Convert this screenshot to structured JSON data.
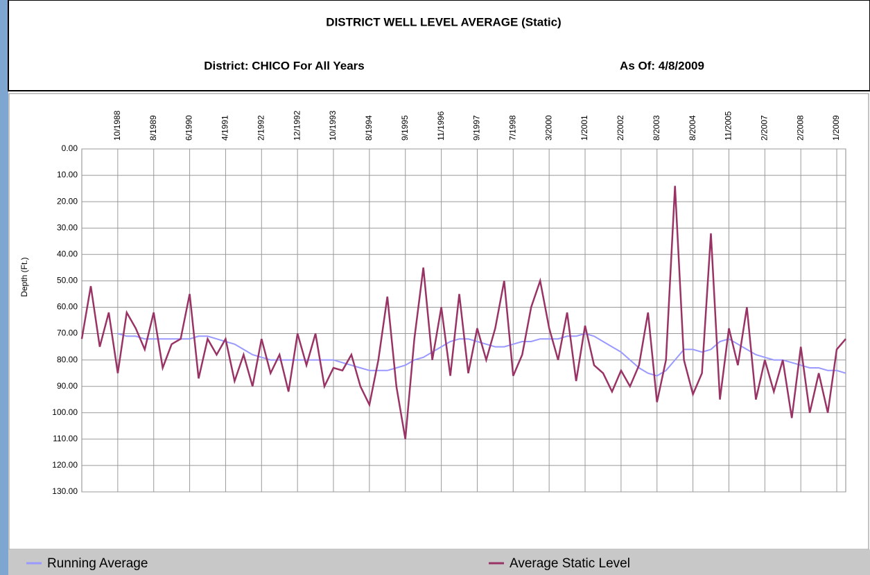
{
  "chart_data": {
    "type": "line",
    "title": "DISTRICT WELL LEVEL AVERAGE (Static)",
    "subtitle": "District: CHICO For All Years",
    "annotation": "As Of: 4/8/2009",
    "y_label": "Depth (Ft.)",
    "y_inverted": true,
    "grid": true,
    "legend": "bottom",
    "categories": [
      null,
      null,
      null,
      null,
      "10/1988",
      null,
      null,
      null,
      "8/1989",
      null,
      null,
      null,
      "6/1990",
      null,
      null,
      null,
      "4/1991",
      null,
      null,
      null,
      "2/1992",
      null,
      null,
      null,
      "12/1992",
      null,
      null,
      null,
      "10/1993",
      null,
      null,
      null,
      "8/1994",
      null,
      null,
      null,
      "9/1995",
      null,
      null,
      null,
      "11/1996",
      null,
      null,
      null,
      "9/1997",
      null,
      null,
      null,
      "7/1998",
      null,
      null,
      null,
      "3/2000",
      null,
      null,
      null,
      "1/2001",
      null,
      null,
      null,
      "2/2002",
      null,
      null,
      null,
      "8/2003",
      null,
      null,
      null,
      "8/2004",
      null,
      null,
      null,
      "11/2005",
      null,
      null,
      null,
      "2/2007",
      null,
      null,
      null,
      "2/2008",
      null,
      null,
      null,
      "1/2009",
      null
    ],
    "series": [
      {
        "name": "Running Average",
        "color": "#9999ff",
        "values": [
          null,
          null,
          null,
          null,
          70,
          71,
          71,
          72,
          72,
          72,
          72,
          72,
          72,
          71,
          71,
          72,
          73,
          74,
          76,
          78,
          79,
          80,
          80,
          80,
          80,
          80,
          80,
          80,
          80,
          81,
          82,
          83,
          84,
          84,
          84,
          83,
          82,
          80,
          79,
          77,
          75,
          73,
          72,
          72,
          73,
          74,
          75,
          75,
          74,
          73,
          73,
          72,
          72,
          72,
          71,
          71,
          70,
          71,
          73,
          75,
          77,
          80,
          83,
          85,
          86,
          84,
          80,
          76,
          76,
          77,
          76,
          73,
          72,
          74,
          76,
          78,
          79,
          80,
          80,
          81,
          82,
          83,
          83,
          84,
          84,
          85
        ]
      },
      {
        "name": "Average Static Level",
        "color": "#993366",
        "values": [
          72,
          52,
          75,
          62,
          85,
          62,
          68,
          76,
          62,
          83,
          74,
          72,
          55,
          87,
          72,
          78,
          72,
          88,
          78,
          90,
          72,
          85,
          78,
          92,
          70,
          82,
          70,
          90,
          83,
          84,
          78,
          90,
          97,
          80,
          56,
          90,
          110,
          72,
          45,
          80,
          60,
          86,
          55,
          85,
          68,
          80,
          68,
          50,
          86,
          78,
          60,
          50,
          68,
          80,
          62,
          88,
          67,
          82,
          85,
          92,
          84,
          90,
          82,
          62,
          96,
          80,
          14,
          80,
          93,
          85,
          32,
          95,
          68,
          82,
          60,
          95,
          80,
          92,
          80,
          102,
          75,
          100,
          85,
          100,
          76,
          72
        ]
      }
    ],
    "ylim": [
      0,
      130
    ],
    "yticks": [
      {
        "value": 0,
        "label": "0.00"
      },
      {
        "value": 10,
        "label": "10.00"
      },
      {
        "value": 20,
        "label": "20.00"
      },
      {
        "value": 30,
        "label": "30.00"
      },
      {
        "value": 40,
        "label": "40.00"
      },
      {
        "value": 50,
        "label": "50.00"
      },
      {
        "value": 60,
        "label": "60.00"
      },
      {
        "value": 70,
        "label": "70.00"
      },
      {
        "value": 80,
        "label": "80.00"
      },
      {
        "value": 90,
        "label": "90.00"
      },
      {
        "value": 100,
        "label": "100.00"
      },
      {
        "value": 110,
        "label": "110.00"
      },
      {
        "value": 120,
        "label": "120.00"
      },
      {
        "value": 130,
        "label": "130.00"
      }
    ]
  }
}
